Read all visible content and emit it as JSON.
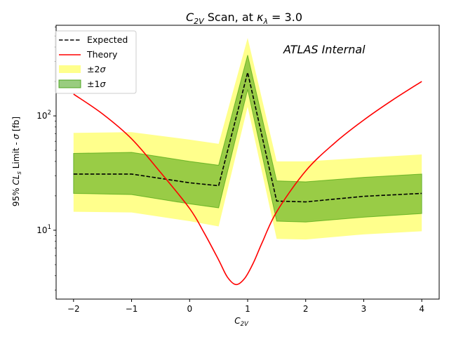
{
  "chart_data": {
    "type": "line",
    "title": "C2V Scan, at κλ = 3.0",
    "title_parts": {
      "c": "C",
      "c_sub": "2V",
      "mid": " Scan, at ",
      "kappa": "κ",
      "kappa_sub": "λ",
      "tail": " = 3.0"
    },
    "xlabel": "C2V",
    "xlabel_parts": {
      "c": "C",
      "c_sub": "2V"
    },
    "ylabel": "95% CLs Limit - σ [fb]",
    "ylabel_parts": {
      "a": "95% ",
      "cl": "CL",
      "cl_sub": "s",
      "b": " Limit - ",
      "sigma": "σ",
      "c": " [fb]"
    },
    "annotation": "ATLAS Internal",
    "x_scale": "linear",
    "y_scale": "log",
    "xlim": [
      -2.3,
      4.3
    ],
    "ylim": [
      2.5,
      620
    ],
    "x_ticks": [
      -2,
      -1,
      0,
      1,
      2,
      3,
      4
    ],
    "x_tick_labels": [
      "−2",
      "−1",
      "0",
      "1",
      "2",
      "3",
      "4"
    ],
    "y_ticks": [
      10,
      100
    ],
    "grid": false,
    "legend_position": "top-left",
    "x": [
      -2,
      -1,
      0,
      0.5,
      1,
      1.5,
      2,
      3,
      4
    ],
    "series": [
      {
        "name": "Expected",
        "style": "dashed",
        "color": "#000000",
        "values": [
          31,
          31,
          26,
          24.5,
          240,
          18,
          17.7,
          19.8,
          21
        ]
      },
      {
        "name": "Theory",
        "style": "solid",
        "color": "#ff0000",
        "x": [
          -2,
          -1.5,
          -1,
          -0.5,
          0,
          0.25,
          0.5,
          0.65,
          0.8,
          0.95,
          1.1,
          1.25,
          1.5,
          2,
          2.5,
          3,
          3.5,
          4
        ],
        "values": [
          155,
          104,
          63,
          32,
          15.5,
          9.5,
          5.5,
          3.9,
          3.35,
          3.8,
          5.2,
          7.8,
          14.5,
          33,
          58,
          92,
          138,
          200
        ]
      }
    ],
    "bands": [
      {
        "name": "±2σ",
        "color": "#ffff00",
        "upper": [
          71,
          72,
          62,
          57,
          480,
          40,
          40,
          43,
          46
        ],
        "lower": [
          14.5,
          14.3,
          12,
          10.8,
          120,
          8.4,
          8.3,
          9.2,
          9.8
        ]
      },
      {
        "name": "±1σ",
        "color": "#339900",
        "upper": [
          47,
          48,
          40,
          37,
          340,
          27,
          26.5,
          29,
          31
        ],
        "lower": [
          21,
          20.5,
          17,
          15.7,
          170,
          12,
          11.8,
          13,
          14
        ]
      }
    ],
    "legend": [
      {
        "label": "Expected",
        "kind": "dashed-line",
        "color": "#000000"
      },
      {
        "label": "Theory",
        "kind": "line",
        "color": "#ff0000"
      },
      {
        "label_pre": "±2",
        "label_sym": "σ",
        "label": "±2σ",
        "kind": "patch",
        "color": "#ffff00"
      },
      {
        "label_pre": "±1",
        "label_sym": "σ",
        "label": "±1σ",
        "kind": "patch",
        "color": "#339900"
      }
    ]
  }
}
